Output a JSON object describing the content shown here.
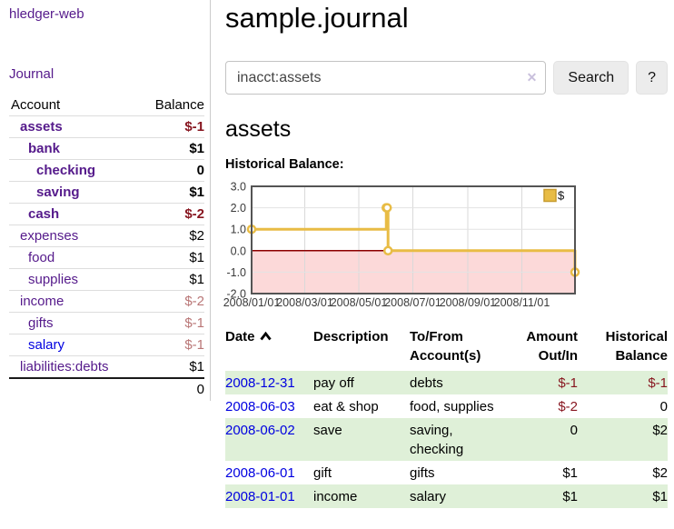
{
  "colors": {
    "link_purple": "#551a8b",
    "link_blue": "#0000e0",
    "negative_strong": "#87151f",
    "negative_soft": "#b97676",
    "row_highlight_green": "#dff0d8",
    "series_gold": "#e8bc45"
  },
  "sidebar": {
    "app_title": "hledger-web",
    "journal_link": "Journal",
    "accounts": {
      "header_account": "Account",
      "header_balance": "Balance",
      "rows": [
        {
          "name": "assets",
          "balance": "$-1",
          "indent": 1,
          "emphasized": true,
          "balance_negative": "strong",
          "link_visited": true
        },
        {
          "name": "bank",
          "balance": "$1",
          "indent": 2,
          "emphasized": true,
          "balance_negative": null,
          "link_visited": true
        },
        {
          "name": "checking",
          "balance": "0",
          "indent": 3,
          "emphasized": true,
          "balance_negative": null,
          "link_visited": true
        },
        {
          "name": "saving",
          "balance": "$1",
          "indent": 3,
          "emphasized": true,
          "balance_negative": null,
          "link_visited": true
        },
        {
          "name": "cash",
          "balance": "$-2",
          "indent": 2,
          "emphasized": true,
          "balance_negative": "strong",
          "link_visited": true
        },
        {
          "name": "expenses",
          "balance": "$2",
          "indent": 1,
          "emphasized": false,
          "balance_negative": null,
          "link_visited": true
        },
        {
          "name": "food",
          "balance": "$1",
          "indent": 2,
          "emphasized": false,
          "balance_negative": null,
          "link_visited": true
        },
        {
          "name": "supplies",
          "balance": "$1",
          "indent": 2,
          "emphasized": false,
          "balance_negative": null,
          "link_visited": true
        },
        {
          "name": "income",
          "balance": "$-2",
          "indent": 1,
          "emphasized": false,
          "balance_negative": "soft",
          "link_visited": true
        },
        {
          "name": "gifts",
          "balance": "$-1",
          "indent": 2,
          "emphasized": false,
          "balance_negative": "soft",
          "link_visited": true
        },
        {
          "name": "salary",
          "balance": "$-1",
          "indent": 2,
          "emphasized": false,
          "balance_negative": "soft",
          "link_visited": false
        },
        {
          "name": "liabilities:debts",
          "balance": "$1",
          "indent": 1,
          "emphasized": false,
          "balance_negative": null,
          "link_visited": true
        }
      ],
      "total": "0"
    }
  },
  "main": {
    "title": "sample.journal",
    "search": {
      "value": "inacct:assets",
      "clear_icon": "✕",
      "search_button": "Search",
      "help_button": "?"
    },
    "account_heading": "assets",
    "chart_title": "Historical Balance:"
  },
  "chart_data": {
    "type": "line",
    "style": "step",
    "title": "Historical Balance",
    "series": [
      {
        "name": "$",
        "points": [
          [
            "2008/01/01",
            1
          ],
          [
            "2008/06/01",
            2
          ],
          [
            "2008/06/02",
            2
          ],
          [
            "2008/06/03",
            0
          ],
          [
            "2008/12/31",
            -1
          ]
        ]
      }
    ],
    "x_range": [
      "2008/01/01",
      "2008/12/31"
    ],
    "x_ticks": [
      "2008/01/01",
      "2008/03/01",
      "2008/05/01",
      "2008/07/01",
      "2008/09/01",
      "2008/11/01"
    ],
    "y_ticks": [
      3.0,
      2.0,
      1.0,
      0.0,
      -1.0,
      -2.0
    ],
    "ylim": [
      -2,
      3
    ],
    "grid": true,
    "legend_position": "top-right",
    "line_color": "#e8bc45",
    "marker_fill": "#ffffff",
    "negative_region_color": "#fcd9d9",
    "zero_line_color": "#8b0000"
  },
  "register": {
    "headers": {
      "date": "Date",
      "description": "Description",
      "accounts": "To/From Account(s)",
      "amount": "Amount Out/In",
      "balance": "Historical Balance"
    },
    "sort": "ascending",
    "rows": [
      {
        "date": "2008-12-31",
        "description": "pay off",
        "accounts": "debts",
        "amount": "$-1",
        "balance": "$-1",
        "amount_negative": true,
        "balance_negative": true,
        "highlight": true
      },
      {
        "date": "2008-06-03",
        "description": "eat & shop",
        "accounts": "food, supplies",
        "amount": "$-2",
        "balance": "0",
        "amount_negative": true,
        "balance_negative": false,
        "highlight": false
      },
      {
        "date": "2008-06-02",
        "description": "save",
        "accounts": "saving, checking",
        "amount": "0",
        "balance": "$2",
        "amount_negative": false,
        "balance_negative": false,
        "highlight": true
      },
      {
        "date": "2008-06-01",
        "description": "gift",
        "accounts": "gifts",
        "amount": "$1",
        "balance": "$2",
        "amount_negative": false,
        "balance_negative": false,
        "highlight": false
      },
      {
        "date": "2008-01-01",
        "description": "income",
        "accounts": "salary",
        "amount": "$1",
        "balance": "$1",
        "amount_negative": false,
        "balance_negative": false,
        "highlight": true
      }
    ]
  }
}
